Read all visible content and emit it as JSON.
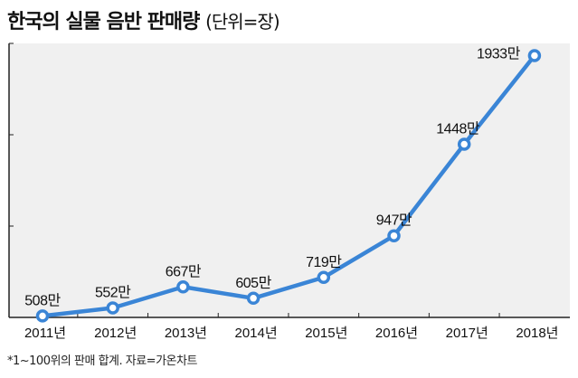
{
  "title": "한국의 실물 음반 판매량",
  "unit_label": "(단위=장)",
  "footnote": "*1~100위의 판매 합계. 자료=가온차트",
  "colors": {
    "line": "#3a85d6",
    "plot_bg": "#f0f0f0",
    "axis": "#222222"
  },
  "chart_data": {
    "type": "line",
    "title": "한국의 실물 음반 판매량",
    "categories": [
      "2011년",
      "2012년",
      "2013년",
      "2014년",
      "2015년",
      "2016년",
      "2017년",
      "2018년"
    ],
    "values": [
      508,
      552,
      667,
      605,
      719,
      947,
      1448,
      1933
    ],
    "data_labels": [
      "508만",
      "552만",
      "667만",
      "605만",
      "719만",
      "947만",
      "1448만",
      "1933만"
    ],
    "ylim": [
      500,
      2000
    ],
    "yticks": [
      500,
      1000,
      1500,
      2000
    ],
    "grid": false,
    "markers": "hollow-circle"
  }
}
